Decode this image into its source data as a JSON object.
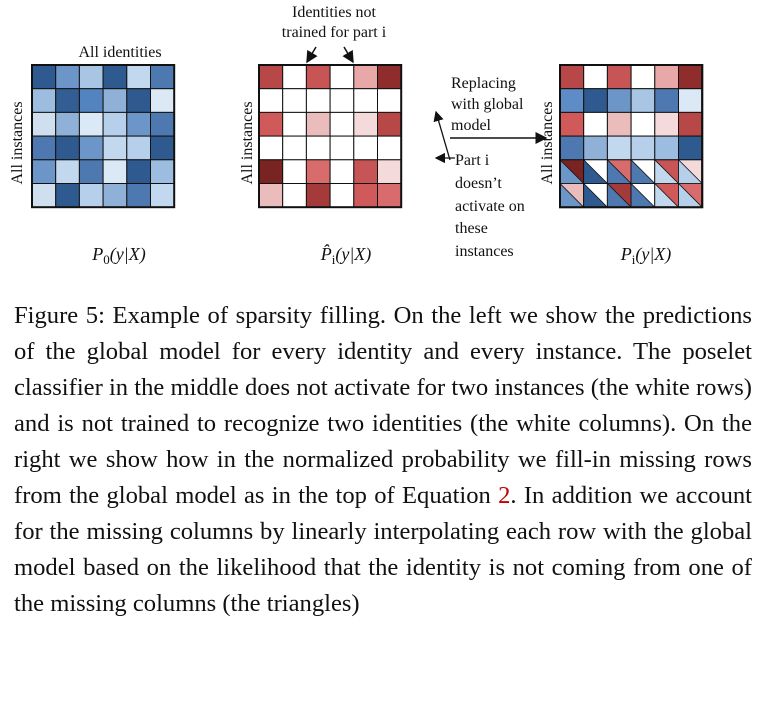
{
  "figure": {
    "panel_left": {
      "title": "All identities",
      "side_label": "All instances",
      "x_label_main": "P",
      "x_label_sub": "0",
      "x_label_rest": "(y|X)",
      "cells": [
        [
          "#2f5a8f",
          "#6c95c8",
          "#a8c6e4",
          "#2f5a8f",
          "#c2d8ee",
          "#4e79b0"
        ],
        [
          "#9cbde0",
          "#335e94",
          "#5484c0",
          "#8fb1d8",
          "#2f5a8f",
          "#dbe8f5"
        ],
        [
          "#cfdff0",
          "#8fb1d8",
          "#dbe8f5",
          "#b6cfea",
          "#6c95c8",
          "#4e79b0"
        ],
        [
          "#4e79b0",
          "#2f5a8f",
          "#6c95c8",
          "#c2d8ee",
          "#b6cfea",
          "#2f5a8f"
        ],
        [
          "#6c95c8",
          "#c2d8ee",
          "#4e79b0",
          "#dbe8f5",
          "#2f5a8f",
          "#9cbde0"
        ],
        [
          "#cfdff0",
          "#2f5a8f",
          "#b6cfea",
          "#8fb1d8",
          "#4e79b0",
          "#c2d8ee"
        ]
      ]
    },
    "panel_mid": {
      "top_note": [
        "Identities not",
        "trained for part i"
      ],
      "side_label": "All instances",
      "x_label_main": "P̂",
      "x_label_sub": "i",
      "x_label_rest": "(y|X)",
      "cells": [
        [
          "#b84747",
          "#ffffff",
          "#c85555",
          "#ffffff",
          "#e8a8a8",
          "#8f2d2d"
        ],
        [
          "#ffffff",
          "#ffffff",
          "#ffffff",
          "#ffffff",
          "#ffffff",
          "#ffffff"
        ],
        [
          "#d05a5a",
          "#ffffff",
          "#ebbcbc",
          "#ffffff",
          "#f4dada",
          "#b84747"
        ],
        [
          "#ffffff",
          "#ffffff",
          "#ffffff",
          "#ffffff",
          "#ffffff",
          "#ffffff"
        ],
        [
          "#7a2323",
          "#ffffff",
          "#d86b6b",
          "#ffffff",
          "#c85555",
          "#f4dada"
        ],
        [
          "#ebbcbc",
          "#ffffff",
          "#a43a3a",
          "#ffffff",
          "#d05a5a",
          "#d86b6b"
        ]
      ]
    },
    "panel_right": {
      "side_label": "All instances",
      "x_label_main": "P",
      "x_label_sub": "i",
      "x_label_rest": "(y|X)",
      "cells": [
        [
          "#b84747",
          "#ffffff",
          "#c85555",
          "#ffffff",
          "#e8a8a8",
          "#8f2d2d"
        ],
        [
          "#5e8cc6",
          "#2f5a8f",
          "#6c95c8",
          "#a8c6e4",
          "#4e79b0",
          "#dbe8f5"
        ],
        [
          "#d05a5a",
          "#ffffff",
          "#ebbcbc",
          "#ffffff",
          "#f4dada",
          "#b84747"
        ],
        [
          "#4e79b0",
          "#8fb1d8",
          "#c2d8ee",
          "#b6cfea",
          "#9cbde0",
          "#2f5a8f"
        ],
        [
          "#7a2323",
          "#ffffff",
          "#d86b6b",
          "#ffffff",
          "#c85555",
          "#f4dada"
        ],
        [
          "#ebbcbc",
          "#ffffff",
          "#a43a3a",
          "#ffffff",
          "#d05a5a",
          "#d86b6b"
        ]
      ],
      "tri_blue": [
        [
          "#6c95c8",
          "#2f5a8f",
          "#4e79b0",
          "#4e79b0",
          "#c2d8ee",
          "#b6cfea"
        ],
        [
          "#6c95c8",
          "#2f5a8f",
          "#4e79b0",
          "#4e79b0",
          "#c2d8ee",
          "#b6cfea"
        ]
      ]
    },
    "annotation_replace": [
      "Replacing",
      "with global",
      "model"
    ],
    "annotation_part": [
      "Part i",
      "doesn’t",
      "activate on",
      "these",
      "instances"
    ]
  },
  "caption": {
    "label": "Figure 5:",
    "text_before_ref": " Example of sparsity filling. On the left we show the predictions of the global model for every identity and every instance. The poselet classifier in the middle does not activate for two instances (the white rows) and is not trained to recognize two identities (the white columns). On the right we show how in the normalized probability we fill-in missing rows from the global model as in the top of Equation ",
    "ref": "2",
    "text_after_ref": ". In addition we account for the missing columns by linearly interpolating each row with the global model based on the likelihood that the identity is not coming from one of the missing columns (the triangles)"
  }
}
